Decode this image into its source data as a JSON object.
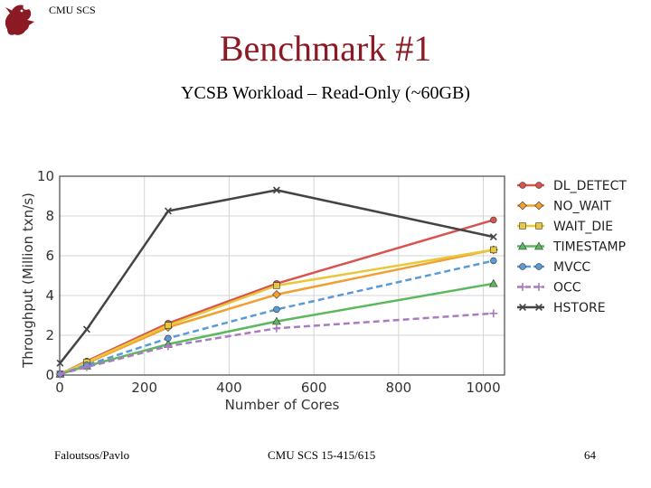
{
  "header": {
    "org": "CMU SCS",
    "title": "Benchmark #1",
    "subtitle": "YCSB Workload – Read-Only (~60GB)"
  },
  "footer": {
    "left": "Faloutsos/Pavlo",
    "center": "CMU SCS 15-415/615",
    "page": "64"
  },
  "colors": {
    "title": "#8b1a24",
    "logo": "#8b1a24"
  },
  "chart_data": {
    "type": "line",
    "xlabel": "Number of Cores",
    "ylabel": "Throughput (Million txn/s)",
    "xlim": [
      0,
      1050
    ],
    "ylim": [
      0,
      10
    ],
    "xticks": [
      0,
      200,
      400,
      600,
      800,
      1000
    ],
    "yticks": [
      0,
      2,
      4,
      6,
      8,
      10
    ],
    "x": [
      1,
      64,
      256,
      512,
      1024
    ],
    "grid": true,
    "legend_position": "outside-right",
    "series": [
      {
        "name": "DL_DETECT",
        "values": [
          0.05,
          0.7,
          2.6,
          4.6,
          7.8
        ],
        "color": "#d9534f",
        "marker": "circle",
        "dash": "solid"
      },
      {
        "name": "NO_WAIT",
        "values": [
          0.05,
          0.6,
          2.4,
          4.05,
          6.3
        ],
        "color": "#f0a030",
        "marker": "diamond",
        "dash": "solid"
      },
      {
        "name": "WAIT_DIE",
        "values": [
          0.05,
          0.65,
          2.5,
          4.5,
          6.3
        ],
        "color": "#e8c83a",
        "marker": "square",
        "dash": "solid"
      },
      {
        "name": "TIMESTAMP",
        "values": [
          0.05,
          0.45,
          1.55,
          2.7,
          4.6
        ],
        "color": "#5cb85c",
        "marker": "triangle",
        "dash": "solid"
      },
      {
        "name": "MVCC",
        "values": [
          0.05,
          0.5,
          1.85,
          3.3,
          5.75
        ],
        "color": "#5b9bd5",
        "marker": "circle",
        "dash": "dashed"
      },
      {
        "name": "OCC",
        "values": [
          0.05,
          0.4,
          1.45,
          2.35,
          3.1
        ],
        "color": "#a97bbf",
        "marker": "plus",
        "dash": "dashed"
      },
      {
        "name": "HSTORE",
        "values": [
          0.6,
          2.3,
          8.25,
          9.3,
          6.95
        ],
        "color": "#444444",
        "marker": "x",
        "dash": "solid"
      }
    ]
  }
}
